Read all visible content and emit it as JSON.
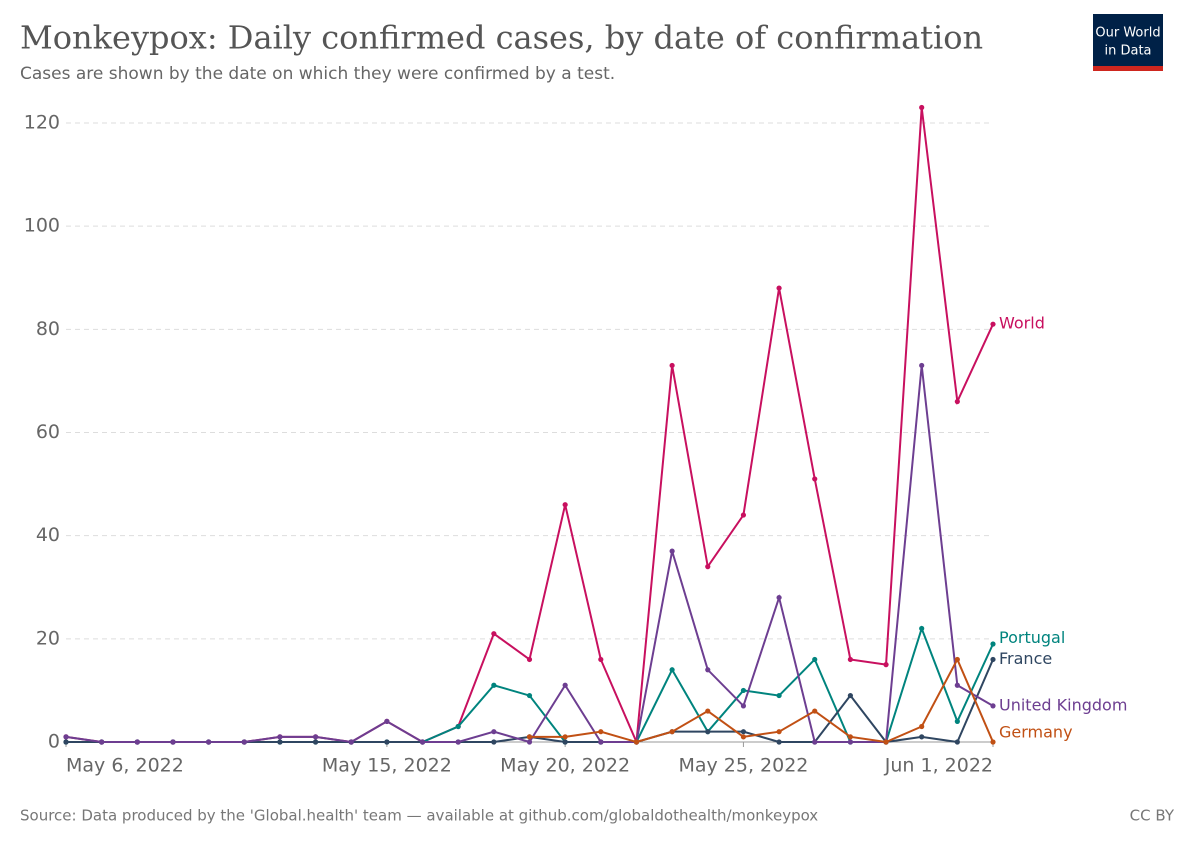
{
  "chart_data": {
    "type": "line",
    "title": "Monkeypox: Daily confirmed cases, by date of confirmation",
    "subtitle": "Cases are shown by the date on which they were confirmed by a test.",
    "logo": [
      "Our World",
      "in Data"
    ],
    "source": "Source: Data produced by the 'Global.health' team — available at github.com/globaldothealth/monkeypox",
    "license": "CC BY",
    "x": [
      "2022-05-06",
      "2022-05-07",
      "2022-05-08",
      "2022-05-09",
      "2022-05-10",
      "2022-05-11",
      "2022-05-12",
      "2022-05-13",
      "2022-05-14",
      "2022-05-15",
      "2022-05-16",
      "2022-05-17",
      "2022-05-18",
      "2022-05-19",
      "2022-05-20",
      "2022-05-21",
      "2022-05-22",
      "2022-05-23",
      "2022-05-24",
      "2022-05-25",
      "2022-05-26",
      "2022-05-27",
      "2022-05-28",
      "2022-05-29",
      "2022-05-30",
      "2022-05-31",
      "2022-06-01"
    ],
    "xlim": [
      "2022-05-06",
      "2022-06-01"
    ],
    "xticks": [
      {
        "value": "2022-05-06",
        "label": "May 6, 2022"
      },
      {
        "value": "2022-05-15",
        "label": "May 15, 2022"
      },
      {
        "value": "2022-05-20",
        "label": "May 20, 2022"
      },
      {
        "value": "2022-05-25",
        "label": "May 25, 2022"
      },
      {
        "value": "2022-06-01",
        "label": "Jun 1, 2022"
      }
    ],
    "ylim": [
      0,
      120
    ],
    "yticks": [
      0,
      20,
      40,
      60,
      80,
      100,
      120
    ],
    "grid": true,
    "series": [
      {
        "name": "World",
        "color": "#c8105f",
        "values": [
          1,
          0,
          0,
          0,
          0,
          0,
          1,
          1,
          0,
          4,
          0,
          3,
          21,
          16,
          46,
          16,
          0,
          73,
          34,
          44,
          88,
          51,
          16,
          15,
          123,
          66,
          81
        ]
      },
      {
        "name": "Portugal",
        "color": "#00847e",
        "values": [
          0,
          0,
          0,
          0,
          0,
          0,
          0,
          0,
          0,
          0,
          0,
          3,
          11,
          9,
          0,
          0,
          0,
          14,
          2,
          10,
          9,
          16,
          0,
          0,
          22,
          4,
          19
        ]
      },
      {
        "name": "France",
        "color": "#2f4661",
        "values": [
          0,
          0,
          0,
          0,
          0,
          0,
          0,
          0,
          0,
          0,
          0,
          0,
          0,
          1,
          0,
          0,
          0,
          2,
          2,
          2,
          0,
          0,
          9,
          0,
          1,
          0,
          16
        ]
      },
      {
        "name": "United Kingdom",
        "color": "#6d3e91",
        "values": [
          1,
          0,
          0,
          0,
          0,
          0,
          1,
          1,
          0,
          4,
          0,
          0,
          2,
          0,
          11,
          0,
          0,
          37,
          14,
          7,
          28,
          0,
          0,
          0,
          73,
          11,
          7
        ]
      },
      {
        "name": "Germany",
        "color": "#c15014",
        "values": [
          null,
          null,
          null,
          null,
          null,
          null,
          null,
          null,
          null,
          null,
          null,
          null,
          null,
          1,
          1,
          2,
          0,
          2,
          6,
          1,
          2,
          6,
          1,
          0,
          3,
          16,
          0
        ]
      }
    ]
  }
}
